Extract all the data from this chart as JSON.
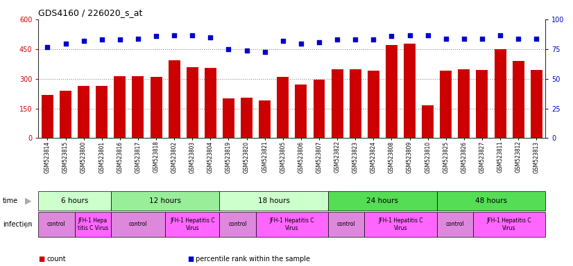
{
  "title": "GDS4160 / 226020_s_at",
  "samples": [
    "GSM523814",
    "GSM523815",
    "GSM523800",
    "GSM523801",
    "GSM523816",
    "GSM523817",
    "GSM523818",
    "GSM523802",
    "GSM523803",
    "GSM523804",
    "GSM523819",
    "GSM523820",
    "GSM523821",
    "GSM523805",
    "GSM523806",
    "GSM523807",
    "GSM523822",
    "GSM523823",
    "GSM523824",
    "GSM523808",
    "GSM523809",
    "GSM523810",
    "GSM523825",
    "GSM523826",
    "GSM523827",
    "GSM523811",
    "GSM523812",
    "GSM523813"
  ],
  "counts": [
    220,
    240,
    265,
    265,
    315,
    315,
    310,
    395,
    360,
    355,
    200,
    205,
    190,
    310,
    270,
    295,
    350,
    350,
    340,
    470,
    480,
    165,
    340,
    350,
    345,
    450,
    390,
    345
  ],
  "percentiles": [
    77,
    80,
    82,
    83,
    83,
    84,
    86,
    87,
    87,
    85,
    75,
    74,
    73,
    82,
    80,
    81,
    83,
    83,
    83,
    86,
    87,
    87,
    84,
    84,
    84,
    87,
    84,
    84
  ],
  "bar_color": "#cc0000",
  "dot_color": "#0000cc",
  "ylim_left": [
    0,
    600
  ],
  "ylim_right": [
    0,
    100
  ],
  "yticks_left": [
    0,
    150,
    300,
    450,
    600
  ],
  "yticks_right": [
    0,
    25,
    50,
    75,
    100
  ],
  "hline_vals": [
    150,
    300,
    450
  ],
  "time_groups": [
    {
      "label": "6 hours",
      "start": 0,
      "end": 4,
      "color": "#ccffcc"
    },
    {
      "label": "12 hours",
      "start": 4,
      "end": 10,
      "color": "#99ee99"
    },
    {
      "label": "18 hours",
      "start": 10,
      "end": 16,
      "color": "#ccffcc"
    },
    {
      "label": "24 hours",
      "start": 16,
      "end": 22,
      "color": "#55dd55"
    },
    {
      "label": "48 hours",
      "start": 22,
      "end": 28,
      "color": "#55dd55"
    }
  ],
  "infection_groups": [
    {
      "label": "control",
      "start": 0,
      "end": 2,
      "color": "#dd88dd"
    },
    {
      "label": "JFH-1 Hepa\ntitis C Virus",
      "start": 2,
      "end": 4,
      "color": "#ff66ff"
    },
    {
      "label": "control",
      "start": 4,
      "end": 7,
      "color": "#dd88dd"
    },
    {
      "label": "JFH-1 Hepatitis C\nVirus",
      "start": 7,
      "end": 10,
      "color": "#ff66ff"
    },
    {
      "label": "control",
      "start": 10,
      "end": 12,
      "color": "#dd88dd"
    },
    {
      "label": "JFH-1 Hepatitis C\nVirus",
      "start": 12,
      "end": 16,
      "color": "#ff66ff"
    },
    {
      "label": "control",
      "start": 16,
      "end": 18,
      "color": "#dd88dd"
    },
    {
      "label": "JFH-1 Hepatitis C\nVirus",
      "start": 18,
      "end": 22,
      "color": "#ff66ff"
    },
    {
      "label": "control",
      "start": 22,
      "end": 24,
      "color": "#dd88dd"
    },
    {
      "label": "JFH-1 Hepatitis C\nVirus",
      "start": 24,
      "end": 28,
      "color": "#ff66ff"
    }
  ],
  "legend_items": [
    {
      "color": "#cc0000",
      "label": "count"
    },
    {
      "color": "#0000cc",
      "label": "percentile rank within the sample"
    }
  ],
  "bg_color": "#ffffff",
  "hline_color": "#888888",
  "left_tick_color": "#cc0000",
  "right_tick_color": "#0000cc"
}
